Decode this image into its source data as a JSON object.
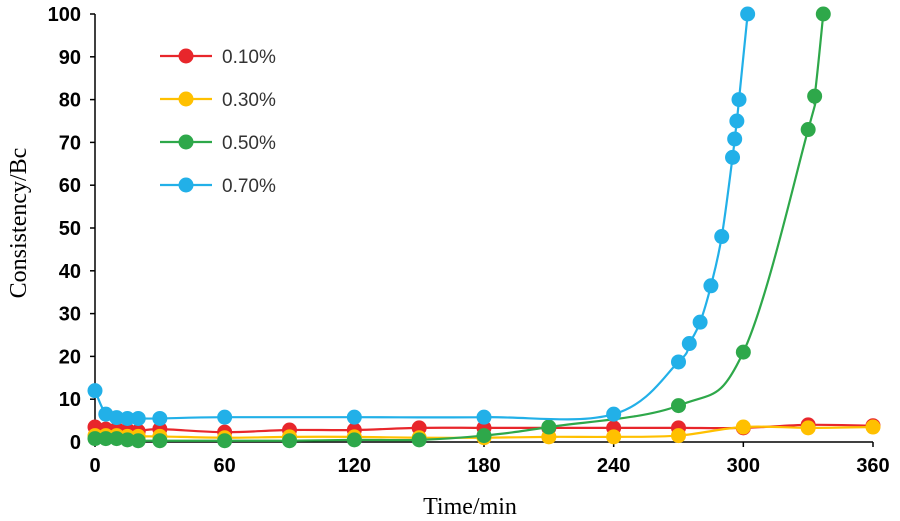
{
  "chart_data": {
    "type": "line",
    "xlabel": "Time/min",
    "ylabel": "Consistency/Bc",
    "xlim": [
      0,
      360
    ],
    "ylim": [
      0,
      100
    ],
    "xticks": [
      0,
      60,
      120,
      180,
      240,
      300,
      360
    ],
    "yticks": [
      0,
      10,
      20,
      30,
      40,
      50,
      60,
      70,
      80,
      90,
      100
    ],
    "grid": false,
    "legend_position": "top-left",
    "series": [
      {
        "name": "0.10%",
        "color": "#e8262b",
        "points": [
          [
            0,
            3.5
          ],
          [
            5,
            3.0
          ],
          [
            10,
            3.0
          ],
          [
            15,
            2.8
          ],
          [
            20,
            2.5
          ],
          [
            30,
            3.0
          ],
          [
            60,
            2.3
          ],
          [
            90,
            2.8
          ],
          [
            120,
            2.8
          ],
          [
            150,
            3.3
          ],
          [
            180,
            3.3
          ],
          [
            210,
            3.3
          ],
          [
            240,
            3.3
          ],
          [
            270,
            3.3
          ],
          [
            300,
            3.3
          ],
          [
            330,
            4.0
          ],
          [
            360,
            3.8
          ]
        ]
      },
      {
        "name": "0.30%",
        "color": "#ffc000",
        "points": [
          [
            0,
            1.5
          ],
          [
            5,
            1.5
          ],
          [
            10,
            1.5
          ],
          [
            15,
            1.3
          ],
          [
            20,
            1.3
          ],
          [
            30,
            1.3
          ],
          [
            60,
            1.0
          ],
          [
            90,
            1.2
          ],
          [
            120,
            1.2
          ],
          [
            150,
            1.0
          ],
          [
            180,
            1.0
          ],
          [
            210,
            1.2
          ],
          [
            240,
            1.2
          ],
          [
            270,
            1.5
          ],
          [
            300,
            3.5
          ],
          [
            330,
            3.3
          ],
          [
            360,
            3.5
          ]
        ]
      },
      {
        "name": "0.50%",
        "color": "#2ea84a",
        "points": [
          [
            0,
            0.8
          ],
          [
            5,
            0.8
          ],
          [
            10,
            0.8
          ],
          [
            15,
            0.5
          ],
          [
            20,
            0.3
          ],
          [
            30,
            0.3
          ],
          [
            60,
            0.3
          ],
          [
            90,
            0.3
          ],
          [
            120,
            0.5
          ],
          [
            150,
            0.5
          ],
          [
            180,
            1.5
          ],
          [
            210,
            3.5
          ],
          [
            270,
            8.5
          ],
          [
            300,
            21.0
          ],
          [
            330,
            73.0
          ],
          [
            333,
            80.8
          ],
          [
            337,
            100.0
          ]
        ]
      },
      {
        "name": "0.70%",
        "color": "#22b0e8",
        "points": [
          [
            0,
            12.0
          ],
          [
            5,
            6.5
          ],
          [
            10,
            5.7
          ],
          [
            15,
            5.5
          ],
          [
            20,
            5.5
          ],
          [
            30,
            5.5
          ],
          [
            60,
            5.8
          ],
          [
            120,
            5.8
          ],
          [
            180,
            5.8
          ],
          [
            240,
            6.5
          ],
          [
            270,
            18.7
          ],
          [
            275,
            23.0
          ],
          [
            280,
            28.0
          ],
          [
            285,
            36.5
          ],
          [
            290,
            48.0
          ],
          [
            295,
            66.5
          ],
          [
            296,
            70.8
          ],
          [
            297,
            75.0
          ],
          [
            298,
            80.0
          ],
          [
            302,
            100.0
          ]
        ]
      }
    ]
  }
}
